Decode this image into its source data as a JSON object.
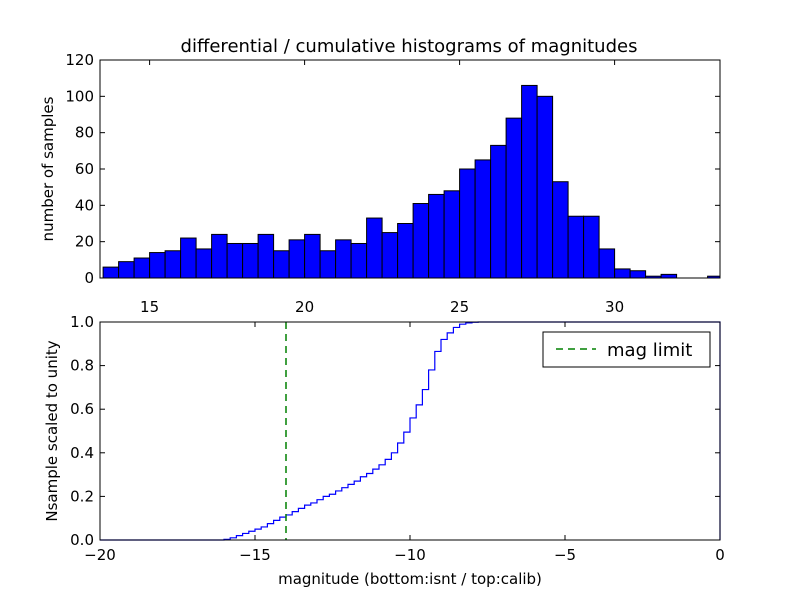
{
  "title": "differential / cumulative histograms of magnitudes",
  "colors": {
    "bar": "#0000ff",
    "bar_edge": "#000000",
    "step": "#0000ff",
    "limit": "#008000"
  },
  "chart_data": [
    {
      "type": "bar",
      "title": "differential / cumulative histograms of magnitudes",
      "ylabel": "number of samples",
      "xlim": [
        13.4,
        33.4
      ],
      "ylim": [
        0,
        120
      ],
      "xticks": [
        15,
        20,
        25,
        30
      ],
      "yticks": [
        0,
        20,
        40,
        60,
        80,
        100,
        120
      ],
      "bin_edges": [
        13.5,
        14.0,
        14.5,
        15.0,
        15.5,
        16.0,
        16.5,
        17.0,
        17.5,
        18.0,
        18.5,
        19.0,
        19.5,
        20.0,
        20.5,
        21.0,
        21.5,
        22.0,
        22.5,
        23.0,
        23.5,
        24.0,
        24.5,
        25.0,
        25.5,
        26.0,
        26.5,
        27.0,
        27.5,
        28.0,
        28.5,
        29.0,
        29.5,
        30.0,
        30.5,
        31.0,
        31.5,
        32.0,
        32.5,
        33.0,
        33.5
      ],
      "values": [
        6,
        9,
        11,
        14,
        15,
        22,
        16,
        24,
        19,
        19,
        24,
        15,
        21,
        24,
        15,
        21,
        19,
        33,
        25,
        30,
        41,
        46,
        48,
        60,
        65,
        73,
        88,
        106,
        100,
        53,
        34,
        34,
        16,
        5,
        4,
        1,
        2,
        0,
        0,
        1
      ]
    },
    {
      "type": "line",
      "style": "step",
      "xlabel": "magnitude (bottom:isnt / top:calib)",
      "ylabel": "Nsample scaled to unity",
      "xlim": [
        -20,
        0
      ],
      "ylim": [
        0,
        1
      ],
      "xticks": [
        -20,
        -15,
        -10,
        -5,
        0
      ],
      "xtick_labels": [
        "−20",
        "−15",
        "−10",
        "−5",
        "0"
      ],
      "yticks": [
        0.0,
        0.2,
        0.4,
        0.6,
        0.8,
        1.0
      ],
      "ytick_labels": [
        "0.0",
        "0.2",
        "0.4",
        "0.6",
        "0.8",
        "1.0"
      ],
      "x": [
        -20,
        -16.0,
        -15.8,
        -15.6,
        -15.4,
        -15.2,
        -15.0,
        -14.8,
        -14.6,
        -14.4,
        -14.2,
        -14.0,
        -13.8,
        -13.6,
        -13.4,
        -13.2,
        -13.0,
        -12.8,
        -12.6,
        -12.4,
        -12.2,
        -12.0,
        -11.8,
        -11.6,
        -11.4,
        -11.2,
        -11.0,
        -10.8,
        -10.6,
        -10.4,
        -10.2,
        -10.0,
        -9.8,
        -9.6,
        -9.4,
        -9.2,
        -9.0,
        -8.8,
        -8.6,
        -8.4,
        -8.2,
        -8.0,
        -7.8,
        -7.6,
        -7.4,
        -7.2,
        -7.0,
        0
      ],
      "y": [
        0.0,
        0.003,
        0.01,
        0.02,
        0.03,
        0.04,
        0.05,
        0.06,
        0.075,
        0.09,
        0.105,
        0.115,
        0.13,
        0.145,
        0.16,
        0.17,
        0.185,
        0.2,
        0.21,
        0.225,
        0.24,
        0.255,
        0.27,
        0.29,
        0.305,
        0.325,
        0.345,
        0.37,
        0.4,
        0.445,
        0.495,
        0.56,
        0.62,
        0.69,
        0.78,
        0.865,
        0.92,
        0.95,
        0.975,
        0.99,
        0.996,
        0.999,
        1.0,
        1.0,
        1.0,
        1.0,
        1.0,
        1.0
      ],
      "mag_limit": -14.0,
      "legend": {
        "label": "mag limit",
        "position": "top-right"
      }
    }
  ]
}
